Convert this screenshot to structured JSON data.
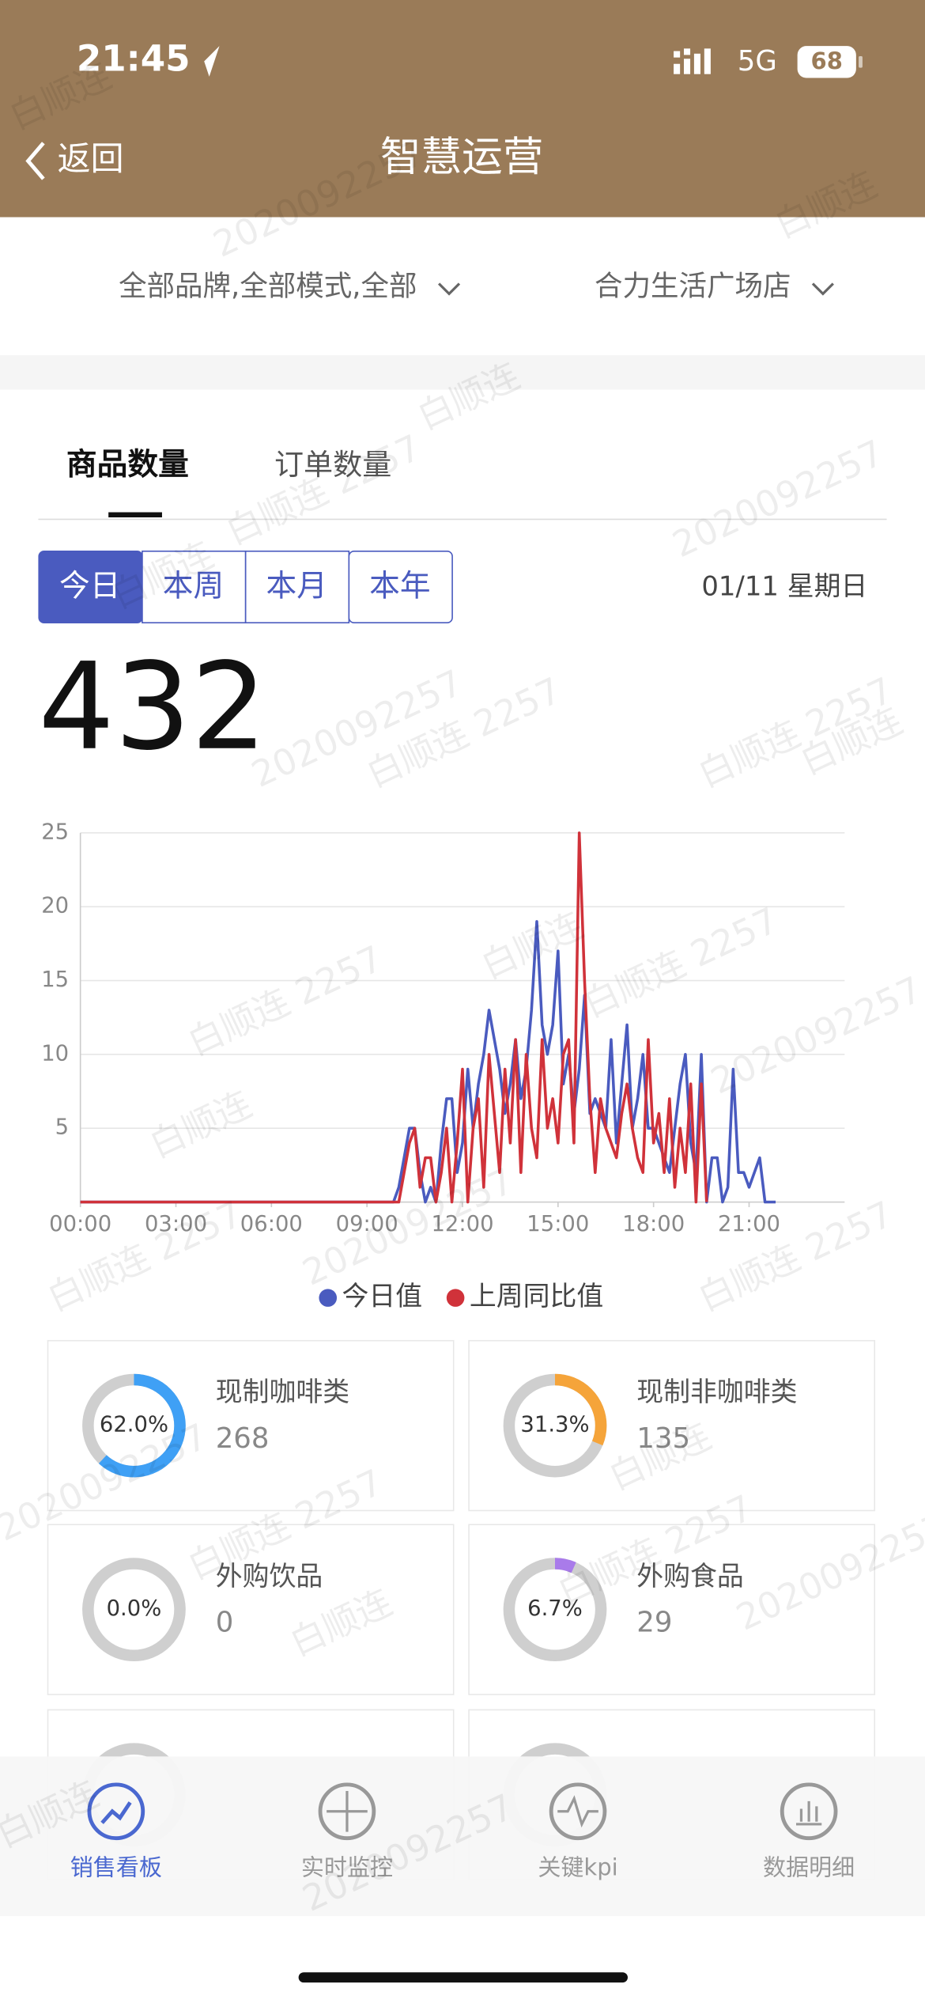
{
  "status": {
    "time": "21:45",
    "network": "5G",
    "battery": "68"
  },
  "nav": {
    "back": "返回",
    "title": "智慧运营"
  },
  "filters": [
    "全部品牌,全部模式,全部",
    "合力生活广场店"
  ],
  "tabs": [
    "商品数量",
    "订单数量"
  ],
  "periods": [
    "今日",
    "本周",
    "本月",
    "本年"
  ],
  "date": "01/11 星期日",
  "total": "432",
  "chart_data": {
    "type": "line",
    "grid": true,
    "x": [
      0,
      60,
      120,
      180,
      240,
      300,
      360,
      420,
      480,
      540,
      570,
      580,
      590,
      600,
      610,
      620,
      630,
      640,
      650,
      660,
      670,
      680,
      690,
      700,
      710,
      720,
      730,
      740,
      750,
      760,
      770,
      780,
      790,
      800,
      810,
      820,
      830,
      840,
      850,
      860,
      870,
      880,
      890,
      900,
      910,
      920,
      930,
      940,
      950,
      960,
      970,
      980,
      990,
      1000,
      1010,
      1020,
      1030,
      1040,
      1050,
      1060,
      1070,
      1080,
      1090,
      1100,
      1110,
      1120,
      1130,
      1140,
      1150,
      1160,
      1170,
      1180,
      1190,
      1200,
      1210,
      1220,
      1230,
      1240,
      1250,
      1260,
      1270,
      1280,
      1290,
      1300,
      1310
    ],
    "xlim": [
      0,
      1440
    ],
    "xticks": [
      {
        "value": 0,
        "label": "00:00"
      },
      {
        "value": 180,
        "label": "03:00"
      },
      {
        "value": 360,
        "label": "06:00"
      },
      {
        "value": 540,
        "label": "09:00"
      },
      {
        "value": 720,
        "label": "12:00"
      },
      {
        "value": 900,
        "label": "15:00"
      },
      {
        "value": 1080,
        "label": "18:00"
      },
      {
        "value": 1260,
        "label": "21:00"
      }
    ],
    "ylim": [
      0,
      25
    ],
    "yticks": [
      5,
      10,
      15,
      20,
      25
    ],
    "series": [
      {
        "name": "今日值",
        "color": "#4a5bbf",
        "values": [
          0,
          0,
          0,
          0,
          0,
          0,
          0,
          0,
          0,
          0,
          0,
          0,
          0,
          1,
          3,
          5,
          5,
          2,
          0,
          1,
          0,
          4,
          7,
          7,
          2,
          4,
          9,
          5,
          8,
          10,
          13,
          11,
          9,
          6,
          8,
          11,
          7,
          9,
          13,
          19,
          12,
          10,
          12,
          17,
          8,
          10,
          6,
          9,
          14,
          6,
          7,
          6,
          5,
          11,
          4,
          8,
          12,
          5,
          7,
          10,
          5,
          5,
          4,
          3,
          2,
          5,
          8,
          10,
          4,
          2,
          10,
          0,
          3,
          3,
          0,
          1,
          9,
          2,
          2,
          1,
          2,
          3,
          0,
          0,
          0
        ]
      },
      {
        "name": "上周同比值",
        "color": "#d0323a",
        "values": [
          0,
          0,
          0,
          0,
          0,
          0,
          0,
          0,
          0,
          0,
          0,
          0,
          0,
          0,
          2,
          4,
          5,
          1,
          3,
          3,
          0,
          2,
          5,
          0,
          4,
          9,
          0,
          5,
          7,
          1,
          10,
          6,
          2,
          9,
          4,
          11,
          2,
          10,
          5,
          3,
          11,
          5,
          7,
          4,
          10,
          11,
          4,
          25,
          15,
          7,
          2,
          7,
          5,
          4,
          3,
          6,
          8,
          5,
          3,
          2,
          11,
          4,
          6,
          2,
          7,
          1,
          5,
          2,
          8,
          0,
          8,
          0,
          null,
          null,
          null,
          null,
          null,
          null,
          null,
          null,
          null,
          null,
          null,
          null,
          null
        ]
      }
    ]
  },
  "cards": [
    {
      "name": "现制咖啡类",
      "value": "268",
      "ring": {
        "value": 62.0,
        "label": "62.0%"
      },
      "color": "#3fa0f5"
    },
    {
      "name": "现制非咖啡类",
      "value": "135",
      "ring": {
        "value": 31.3,
        "label": "31.3%"
      },
      "color": "#f5a43a"
    },
    {
      "name": "外购饮品",
      "value": "0",
      "ring": {
        "value": 0.0,
        "label": "0.0%"
      },
      "color": "#a97bea"
    },
    {
      "name": "外购食品",
      "value": "29",
      "ring": {
        "value": 6.7,
        "label": "6.7%"
      },
      "color": "#a97bea"
    }
  ],
  "tabbar": [
    "销售看板",
    "实时监控",
    "关键kpi",
    "数据明细"
  ],
  "watermark": [
    "白顺连",
    "2020092257",
    "白顺连 2257"
  ]
}
